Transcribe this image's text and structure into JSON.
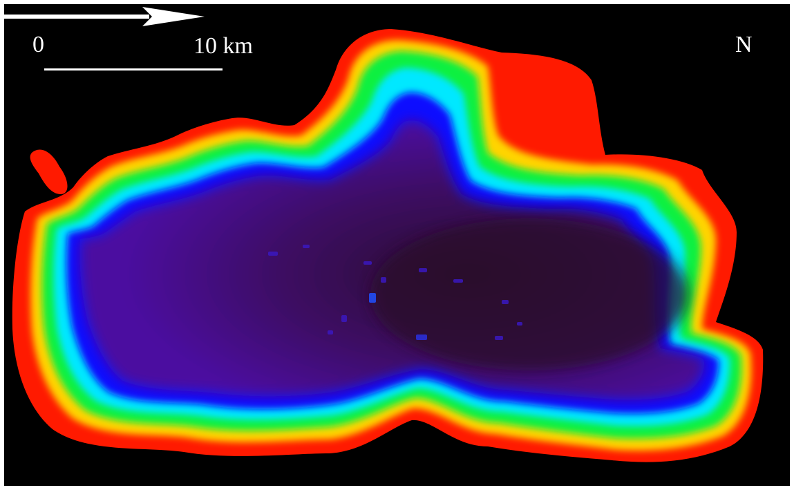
{
  "map": {
    "scale_bar": {
      "start_label": "0",
      "end_label": "10 km"
    },
    "north_arrow": {
      "label": "N"
    },
    "background_color": "#000000",
    "depth_color_ramp": [
      "#ff1a00",
      "#ffff00",
      "#00ff40",
      "#00ffff",
      "#0000ff",
      "#4b0096",
      "#2a0a30"
    ]
  }
}
